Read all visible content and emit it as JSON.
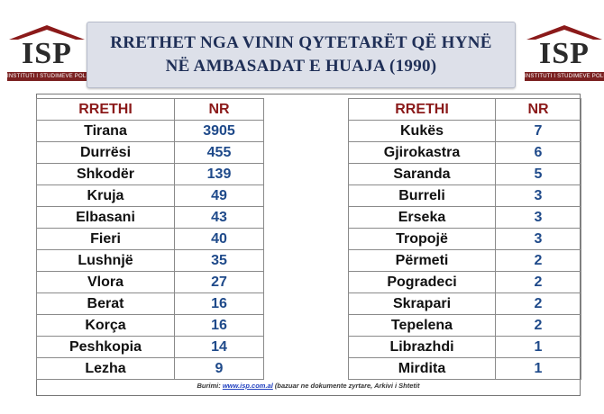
{
  "logo": {
    "text": "ISP",
    "subtitle": "INSTITUTI I STUDIMEVE POLITIKE"
  },
  "title": {
    "line1": "RRETHET NGA VININ QYTETARËT QË HYNË",
    "line2": "NË AMBASADAT E HUAJA (1990)"
  },
  "table": {
    "headers": {
      "city": "RRETHI",
      "number": "NR"
    },
    "left": [
      {
        "city": "Tirana",
        "nr": "3905"
      },
      {
        "city": "Durrësi",
        "nr": "455"
      },
      {
        "city": "Shkodër",
        "nr": "139"
      },
      {
        "city": "Kruja",
        "nr": "49"
      },
      {
        "city": "Elbasani",
        "nr": "43"
      },
      {
        "city": "Fieri",
        "nr": "40"
      },
      {
        "city": "Lushnjë",
        "nr": "35"
      },
      {
        "city": "Vlora",
        "nr": "27"
      },
      {
        "city": "Berat",
        "nr": "16"
      },
      {
        "city": "Korça",
        "nr": "16"
      },
      {
        "city": "Peshkopia",
        "nr": "14"
      },
      {
        "city": "Lezha",
        "nr": "9"
      }
    ],
    "right": [
      {
        "city": "Kukës",
        "nr": "7"
      },
      {
        "city": "Gjirokastra",
        "nr": "6"
      },
      {
        "city": "Saranda",
        "nr": "5"
      },
      {
        "city": "Burreli",
        "nr": "3"
      },
      {
        "city": "Erseka",
        "nr": "3"
      },
      {
        "city": "Tropojë",
        "nr": "3"
      },
      {
        "city": "Përmeti",
        "nr": "2"
      },
      {
        "city": "Pogradeci",
        "nr": "2"
      },
      {
        "city": "Skrapari",
        "nr": "2"
      },
      {
        "city": "Tepelena",
        "nr": "2"
      },
      {
        "city": "Librazhdi",
        "nr": "1"
      },
      {
        "city": "Mirdita",
        "nr": "1"
      }
    ]
  },
  "source": {
    "label": "Burimi:",
    "link": "www.isp.com.al",
    "note": "(bazuar ne dokumente zyrtare, Arkivi i Shtetit"
  },
  "colors": {
    "title_bg": "#dde0e9",
    "title_text": "#1f2f57",
    "header_text": "#8b1a1a",
    "number_text": "#1f4a8a",
    "logo_band": "#7b2121"
  }
}
